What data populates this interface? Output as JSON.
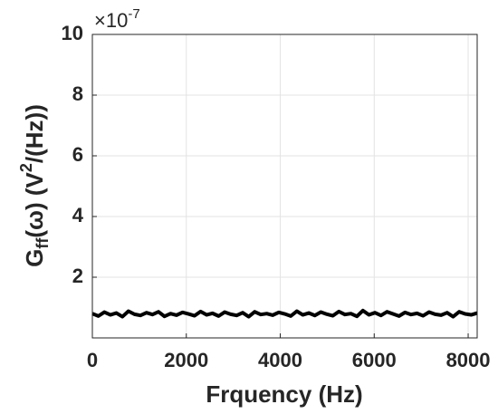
{
  "chart_data": {
    "type": "line",
    "x_label": "Frquency (Hz)",
    "y_label": {
      "main": "G",
      "sub": "ff",
      "mid": "(ω)  (V",
      "sup": "2",
      "end": "/(Hz))"
    },
    "exponent": {
      "base": "×10",
      "power": "-7"
    },
    "x": [
      0,
      128,
      256,
      384,
      512,
      640,
      768,
      896,
      1024,
      1152,
      1280,
      1408,
      1536,
      1664,
      1792,
      1920,
      2048,
      2176,
      2304,
      2432,
      2560,
      2688,
      2816,
      2944,
      3072,
      3200,
      3328,
      3456,
      3584,
      3712,
      3840,
      3968,
      4096,
      4224,
      4352,
      4480,
      4608,
      4736,
      4864,
      4992,
      5120,
      5248,
      5376,
      5504,
      5632,
      5760,
      5888,
      6016,
      6144,
      6272,
      6400,
      6528,
      6656,
      6784,
      6912,
      7040,
      7168,
      7296,
      7424,
      7552,
      7680,
      7808,
      7936,
      8064,
      8192
    ],
    "values": [
      0.8,
      0.72,
      0.85,
      0.76,
      0.82,
      0.7,
      0.88,
      0.78,
      0.74,
      0.83,
      0.77,
      0.86,
      0.71,
      0.8,
      0.75,
      0.84,
      0.79,
      0.73,
      0.87,
      0.76,
      0.81,
      0.72,
      0.85,
      0.78,
      0.74,
      0.83,
      0.7,
      0.86,
      0.77,
      0.8,
      0.75,
      0.84,
      0.79,
      0.72,
      0.88,
      0.76,
      0.82,
      0.74,
      0.85,
      0.78,
      0.73,
      0.87,
      0.77,
      0.8,
      0.71,
      0.9,
      0.76,
      0.83,
      0.74,
      0.86,
      0.79,
      0.72,
      0.84,
      0.77,
      0.81,
      0.73,
      0.85,
      0.78,
      0.75,
      0.83,
      0.7,
      0.86,
      0.79,
      0.76,
      0.82
    ],
    "color": "#000000",
    "xlim": [
      0,
      8192
    ],
    "xticks": [
      0,
      2000,
      4000,
      6000,
      8000
    ],
    "ylim": [
      0,
      10
    ],
    "yticks": [
      2,
      4,
      6,
      8,
      10
    ],
    "grid": true
  }
}
